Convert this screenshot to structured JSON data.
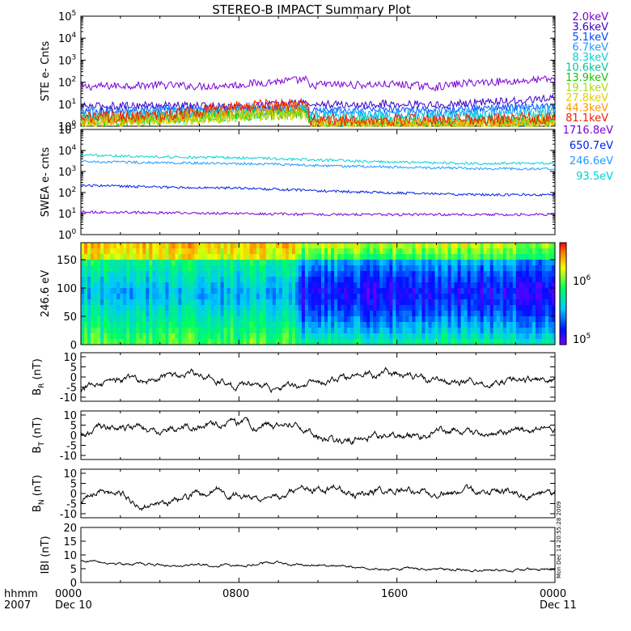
{
  "title": "STEREO-B IMPACT Summary Plot",
  "x_axis": {
    "row1": [
      "0000",
      "0800",
      "1600",
      "0000"
    ],
    "row2_left": "Dec 10",
    "row2_right": "Dec 11",
    "corner_top": "hhmm",
    "corner_bottom": "2007"
  },
  "stamp": "Mon Dec 14 20:55:28 2009",
  "colorbar": {
    "low_label": "10",
    "low_exp": "5",
    "high_label": "10",
    "high_exp": "6"
  },
  "chart_data": [
    {
      "type": "line",
      "panel": "ste",
      "ylabel": "STE e- Cnts",
      "ylim": [
        1,
        100000
      ],
      "log": true,
      "y_ticks": [
        {
          "b": "10",
          "e": "0"
        },
        {
          "b": "10",
          "e": "1"
        },
        {
          "b": "10",
          "e": "2"
        },
        {
          "b": "10",
          "e": "3"
        },
        {
          "b": "10",
          "e": "4"
        },
        {
          "b": "10",
          "e": "5"
        }
      ],
      "x_hours": [
        0,
        2,
        4,
        6,
        8,
        10,
        11.4,
        11.6,
        12,
        14,
        16,
        18,
        20,
        22,
        24
      ],
      "series": [
        {
          "name": "2.0keV",
          "color": "#7a00d6",
          "values": [
            60,
            70,
            75,
            65,
            75,
            110,
            130,
            55,
            80,
            75,
            80,
            60,
            100,
            110,
            140
          ]
        },
        {
          "name": "3.6keV",
          "color": "#3a00c8",
          "values": [
            8,
            8.5,
            9,
            8,
            8,
            10,
            12,
            9,
            10,
            9,
            11,
            9,
            12,
            14,
            18
          ]
        },
        {
          "name": "5.1keV",
          "color": "#0047ff",
          "values": [
            5,
            5.5,
            6,
            6,
            6.5,
            7,
            7.5,
            5,
            6,
            5.5,
            6,
            5,
            6.5,
            7,
            9
          ]
        },
        {
          "name": "6.7keV",
          "color": "#1e9bff",
          "values": [
            3.5,
            3.8,
            4,
            4.5,
            5,
            5.5,
            6,
            3.5,
            4,
            3.8,
            4,
            3.5,
            4.5,
            5,
            6
          ]
        },
        {
          "name": "8.3keV",
          "color": "#00d2d2",
          "values": [
            2.6,
            2.8,
            3,
            3.5,
            4,
            4.5,
            5,
            2.5,
            2.6,
            2.5,
            2.6,
            2.4,
            2.8,
            3,
            3.5
          ]
        },
        {
          "name": "10.6keV",
          "color": "#00c896",
          "values": [
            2,
            2.1,
            2.3,
            2.8,
            3.5,
            4,
            4.3,
            1.5,
            1.6,
            1.5,
            1.6,
            1.5,
            1.7,
            1.8,
            2
          ]
        },
        {
          "name": "13.9keV",
          "color": "#16c800",
          "values": [
            1.7,
            1.8,
            2,
            2.5,
            3.2,
            3.8,
            4,
            1.3,
            1.3,
            1.2,
            1.3,
            1.2,
            1.4,
            1.5,
            1.6
          ]
        },
        {
          "name": "19.1keV",
          "color": "#aadc00",
          "values": [
            1.5,
            1.6,
            1.8,
            2.3,
            3,
            3.6,
            3.8,
            1.2,
            1.2,
            1.1,
            1.2,
            1.1,
            1.3,
            1.3,
            1.4
          ]
        },
        {
          "name": "27.8keV",
          "color": "#e0d200",
          "values": [
            1.4,
            1.5,
            1.7,
            2.2,
            3,
            3.5,
            3.7,
            1.15,
            1.15,
            1.1,
            1.15,
            1.1,
            1.2,
            1.2,
            1.3
          ]
        },
        {
          "name": "44.3keV",
          "color": "#ff9600",
          "values": [
            2,
            2.2,
            2.5,
            4,
            6,
            7,
            7.5,
            1.5,
            1.5,
            1.4,
            1.5,
            1.4,
            1.6,
            1.7,
            2
          ]
        },
        {
          "name": "81.1keV",
          "color": "#f01e00",
          "values": [
            2.5,
            2.8,
            3,
            5,
            8,
            9,
            10,
            2,
            2,
            1.9,
            2,
            1.9,
            2.1,
            2.2,
            2.5
          ]
        }
      ]
    },
    {
      "type": "line",
      "panel": "swea",
      "ylabel": "SWEA e- cnts",
      "ylim": [
        1,
        100000
      ],
      "log": true,
      "y_ticks": [
        {
          "b": "10",
          "e": "0"
        },
        {
          "b": "10",
          "e": "1"
        },
        {
          "b": "10",
          "e": "2"
        },
        {
          "b": "10",
          "e": "3"
        },
        {
          "b": "10",
          "e": "4"
        },
        {
          "b": "10",
          "e": "5"
        }
      ],
      "x_hours": [
        0,
        4,
        8,
        12,
        16,
        20,
        24
      ],
      "series": [
        {
          "name": "1716.8eV",
          "color": "#7a00d6",
          "values": [
            12,
            11,
            10,
            9,
            9,
            9,
            9
          ]
        },
        {
          "name": "650.7eV",
          "color": "#0020e6",
          "values": [
            220,
            180,
            160,
            120,
            95,
            80,
            80
          ]
        },
        {
          "name": "246.6eV",
          "color": "#1e9bff",
          "values": [
            3000,
            2600,
            2400,
            1900,
            1600,
            1400,
            1300
          ]
        },
        {
          "name": "93.5eV",
          "color": "#00d2d2",
          "values": [
            6000,
            5000,
            4500,
            3500,
            2800,
            2400,
            2500
          ]
        }
      ]
    },
    {
      "type": "heatmap",
      "panel": "pad",
      "ylabel": "246.6 eV",
      "ylim": [
        0,
        180
      ],
      "y_ticks": [
        "0",
        "50",
        "100",
        "150"
      ]
    },
    {
      "type": "line",
      "panel": "br",
      "ylabel_main": "B",
      "ylabel_sub": "R",
      "ylabel_unit": " (nT)",
      "ylim": [
        -12,
        12
      ],
      "y_ticks": [
        "-10",
        "-5",
        "0",
        "5",
        "10"
      ],
      "x_hours": [
        0,
        1,
        2,
        3,
        4,
        5,
        6,
        7,
        8,
        9,
        10,
        11,
        12,
        13,
        14,
        15,
        16,
        17,
        18,
        19,
        20,
        21,
        22,
        23,
        24
      ],
      "values": [
        -6,
        -4,
        -1,
        -2,
        0,
        1,
        2,
        -2,
        -4,
        -3,
        -5,
        -4,
        -2,
        -1,
        0,
        1,
        2,
        -1,
        -2,
        -3,
        -2,
        -3,
        -1,
        -2,
        -2
      ]
    },
    {
      "type": "line",
      "panel": "bt",
      "ylabel_main": "B",
      "ylabel_sub": "T",
      "ylabel_unit": " (nT)",
      "ylim": [
        -12,
        12
      ],
      "y_ticks": [
        "-10",
        "-5",
        "0",
        "5",
        "10"
      ],
      "x_hours": [
        0,
        1,
        2,
        3,
        4,
        5,
        6,
        7,
        8,
        9,
        10,
        11,
        12,
        13,
        14,
        15,
        16,
        17,
        18,
        19,
        20,
        21,
        22,
        23,
        24
      ],
      "values": [
        0,
        3,
        4,
        3,
        2,
        3,
        4,
        5,
        6,
        4,
        4,
        6,
        0,
        -3,
        -2,
        -1,
        0,
        -2,
        2,
        3,
        1,
        2,
        3,
        2,
        3
      ]
    },
    {
      "type": "line",
      "panel": "bn",
      "ylabel_main": "B",
      "ylabel_sub": "N",
      "ylabel_unit": " (nT)",
      "ylim": [
        -12,
        12
      ],
      "y_ticks": [
        "-10",
        "-5",
        "0",
        "5",
        "10"
      ],
      "x_hours": [
        0,
        1,
        2,
        3,
        4,
        5,
        6,
        7,
        8,
        9,
        10,
        11,
        12,
        13,
        14,
        15,
        16,
        17,
        18,
        19,
        20,
        21,
        22,
        23,
        24
      ],
      "values": [
        -5,
        2,
        1,
        -5,
        -6,
        -3,
        0,
        2,
        -1,
        -3,
        -1,
        1,
        2,
        1,
        0,
        2,
        1,
        0,
        1,
        2,
        1,
        0,
        1,
        -1,
        0
      ]
    },
    {
      "type": "line",
      "panel": "bmag",
      "ylabel": "IBI (nT)",
      "ylim": [
        0,
        20
      ],
      "y_ticks": [
        "0",
        "5",
        "10",
        "15",
        "20"
      ],
      "x_hours": [
        0,
        2,
        4,
        6,
        8,
        10,
        12,
        14,
        16,
        18,
        20,
        22,
        24
      ],
      "values": [
        8,
        7,
        6.5,
        6.3,
        6.5,
        7,
        6,
        5.5,
        5,
        4.8,
        4.5,
        4.5,
        4.6
      ]
    }
  ]
}
